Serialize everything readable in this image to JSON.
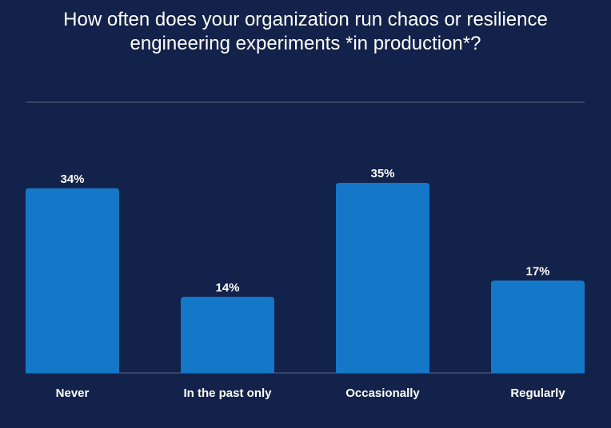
{
  "chart_data": {
    "type": "bar",
    "title_lines": [
      "How often does your organization run chaos or resilience",
      "engineering experiments *in production*?"
    ],
    "categories": [
      "Never",
      "In the past only",
      "Occasionally",
      "Regularly"
    ],
    "values": [
      34,
      14,
      35,
      17
    ],
    "value_labels": [
      "34%",
      "14%",
      "35%",
      "17%"
    ],
    "unit": "%",
    "ylim": [
      0,
      35
    ],
    "xlabel": "",
    "ylabel": "",
    "grid": false,
    "legend": "none",
    "colors": {
      "background": "#13224a",
      "bar": "#1577c7",
      "divider": "#5c6780",
      "text": "#ffffff"
    }
  }
}
